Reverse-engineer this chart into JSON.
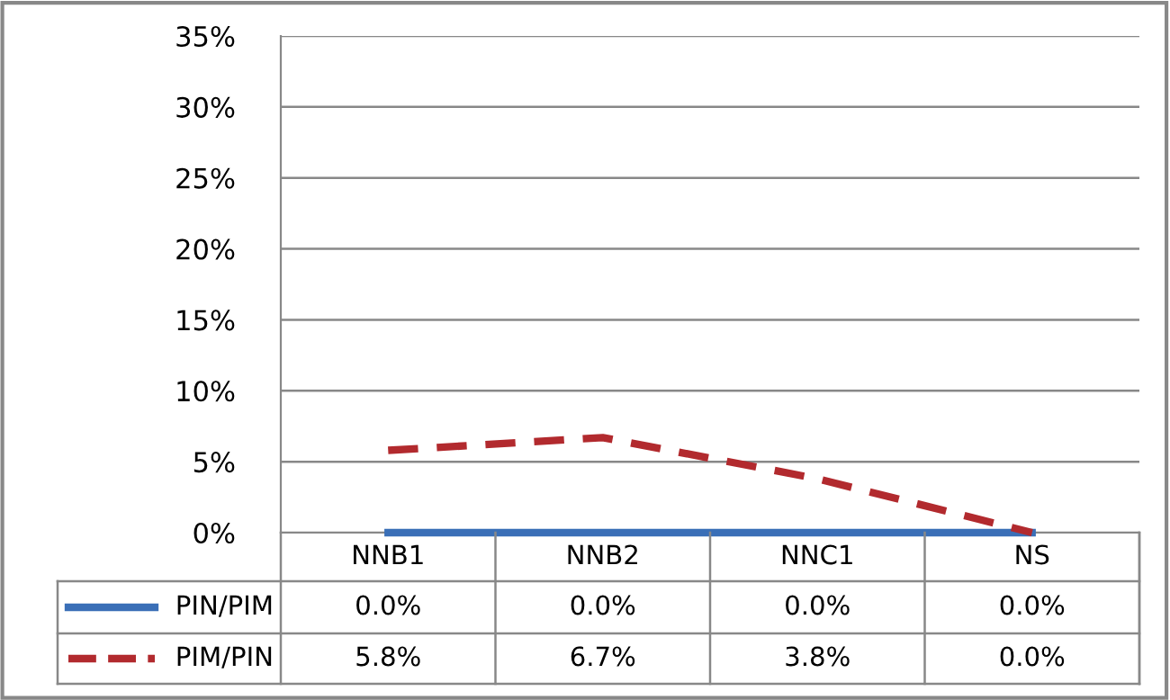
{
  "chart_data": {
    "type": "line",
    "categories": [
      "NNB1",
      "NNB2",
      "NNC1",
      "NS"
    ],
    "series": [
      {
        "name": "PIN/PIM",
        "color": "#3a6fb7",
        "line_style": "solid",
        "values": [
          0.0,
          0.0,
          0.0,
          0.0
        ],
        "value_labels": [
          "0.0%",
          "0.0%",
          "0.0%",
          "0.0%"
        ]
      },
      {
        "name": "PIM/PIN",
        "color": "#b22a2e",
        "line_style": "dashed",
        "values": [
          5.8,
          6.7,
          3.8,
          0.0
        ],
        "value_labels": [
          "5.8%",
          "6.7%",
          "3.8%",
          "0.0%"
        ]
      }
    ],
    "ylim": [
      0,
      35
    ],
    "yticks": [
      {
        "value": 0,
        "label": "0%"
      },
      {
        "value": 5,
        "label": "5%"
      },
      {
        "value": 10,
        "label": "10%"
      },
      {
        "value": 15,
        "label": "15%"
      },
      {
        "value": 20,
        "label": "20%"
      },
      {
        "value": 25,
        "label": "25%"
      },
      {
        "value": 30,
        "label": "30%"
      },
      {
        "value": 35,
        "label": "35%"
      }
    ],
    "grid": "y",
    "legend": "bottom",
    "marker": "none"
  }
}
